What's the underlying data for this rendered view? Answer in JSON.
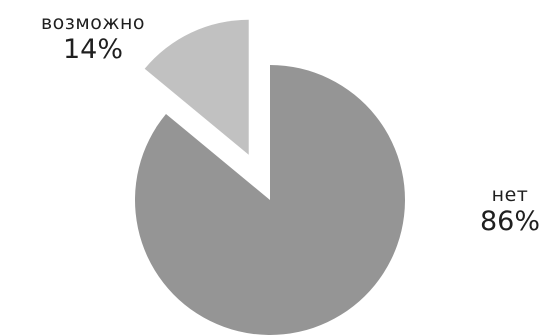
{
  "chart_data": {
    "type": "pie",
    "title": "",
    "slices": [
      {
        "label": "возможно",
        "value": 14,
        "display": "14%",
        "color": "#c1c1c1",
        "exploded": true
      },
      {
        "label": "нет",
        "value": 86,
        "display": "86%",
        "color": "#959595",
        "exploded": false
      }
    ],
    "legend": "none",
    "data_labels": "outside"
  }
}
